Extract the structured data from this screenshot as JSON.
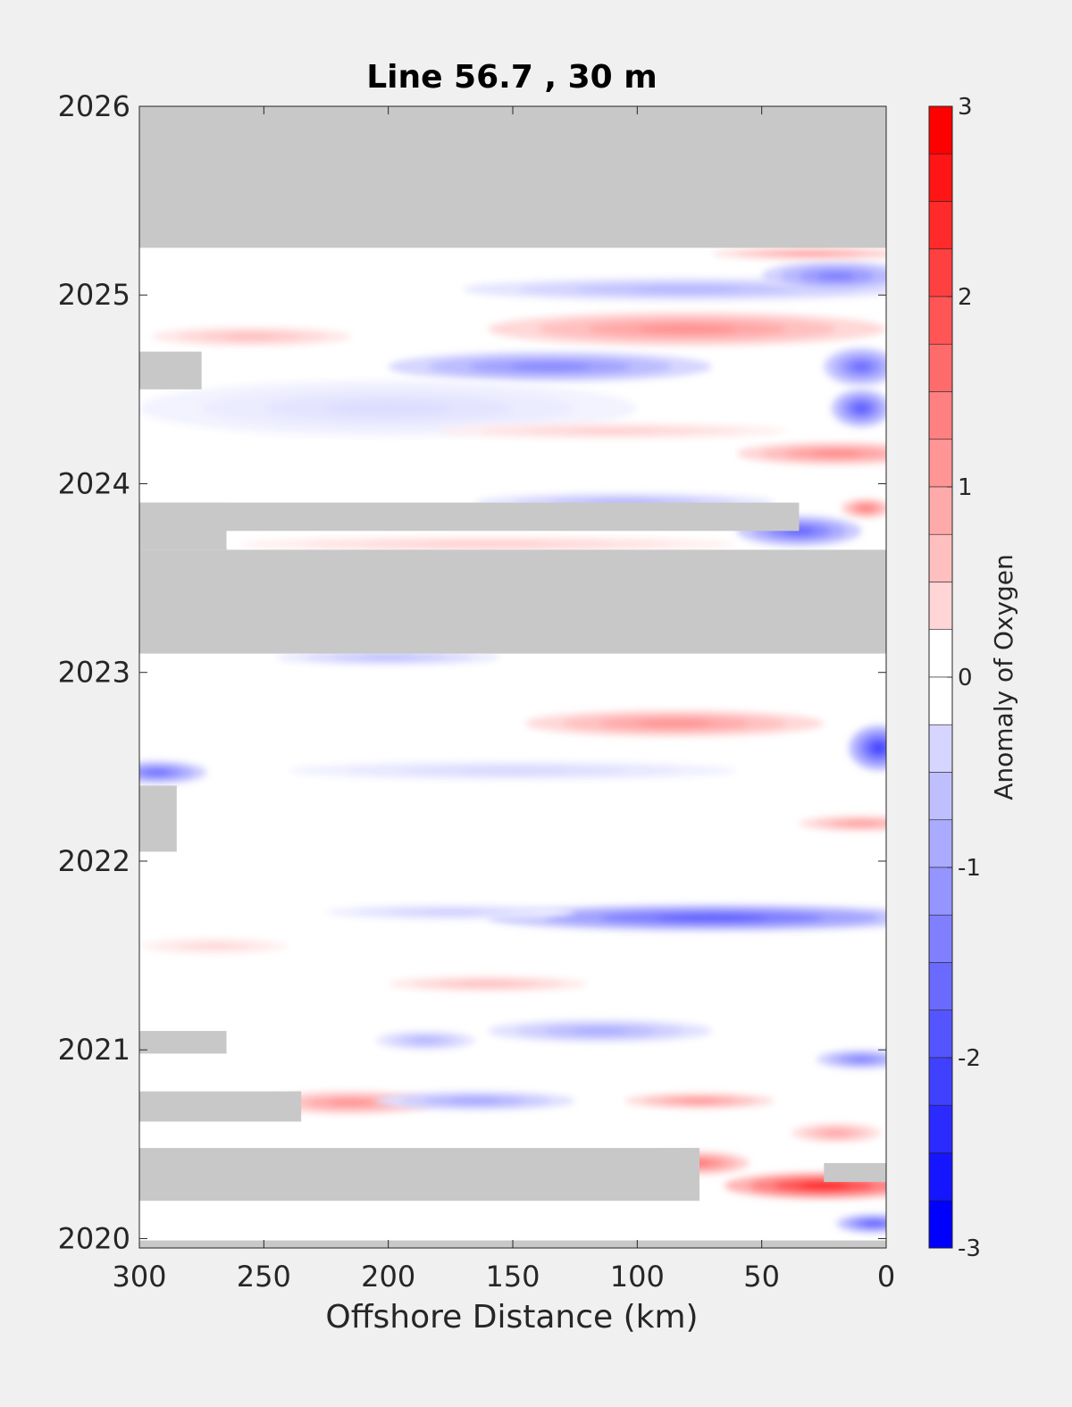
{
  "chart_data": {
    "type": "heatmap",
    "title": "Line 56.7 , 30 m",
    "xlabel": "Offshore Distance (km)",
    "ylabel": "",
    "xlim": [
      300,
      0
    ],
    "ylim": [
      2019.95,
      2026
    ],
    "xticks": [
      300,
      250,
      200,
      150,
      100,
      50,
      0
    ],
    "yticks": [
      2020,
      2021,
      2022,
      2023,
      2024,
      2025,
      2026
    ],
    "colorbar": {
      "label": "Anomaly of Oxygen",
      "range": [
        -3,
        3
      ],
      "ticks": [
        3,
        2,
        1,
        0,
        -1,
        -2,
        -3
      ],
      "levels": 24,
      "negative_color": "#0000ff",
      "positive_color": "#ff0000",
      "missing_color": "#c8c8c8"
    },
    "missing_regions": [
      {
        "x": [
          300,
          0
        ],
        "y": [
          2025.25,
          2026
        ]
      },
      {
        "x": [
          300,
          0
        ],
        "y": [
          2023.1,
          2023.65
        ]
      },
      {
        "x": [
          300,
          35
        ],
        "y": [
          2023.75,
          2023.9
        ]
      },
      {
        "x": [
          300,
          265
        ],
        "y": [
          2023.65,
          2023.9
        ]
      },
      {
        "x": [
          300,
          275
        ],
        "y": [
          2024.5,
          2024.7
        ]
      },
      {
        "x": [
          300,
          285
        ],
        "y": [
          2022.05,
          2022.4
        ]
      },
      {
        "x": [
          300,
          265
        ],
        "y": [
          2020.98,
          2021.1
        ]
      },
      {
        "x": [
          300,
          235
        ],
        "y": [
          2020.62,
          2020.78
        ]
      },
      {
        "x": [
          300,
          75
        ],
        "y": [
          2020.2,
          2020.48
        ]
      },
      {
        "x": [
          25,
          0
        ],
        "y": [
          2020.3,
          2020.4
        ]
      },
      {
        "x": [
          300,
          0
        ],
        "y": [
          2019.95,
          2019.99
        ]
      }
    ],
    "anomaly_features": [
      {
        "x": 80,
        "y": 2025.03,
        "rx": 90,
        "ry": 0.06,
        "value": -0.9
      },
      {
        "x": 20,
        "y": 2025.1,
        "rx": 30,
        "ry": 0.08,
        "value": -1.5
      },
      {
        "x": 30,
        "y": 2025.22,
        "rx": 40,
        "ry": 0.03,
        "value": 1.2
      },
      {
        "x": 80,
        "y": 2024.82,
        "rx": 80,
        "ry": 0.09,
        "value": 1.3
      },
      {
        "x": 255,
        "y": 2024.78,
        "rx": 40,
        "ry": 0.05,
        "value": 0.8
      },
      {
        "x": 135,
        "y": 2024.62,
        "rx": 65,
        "ry": 0.08,
        "value": -1.4
      },
      {
        "x": 10,
        "y": 2024.62,
        "rx": 15,
        "ry": 0.1,
        "value": -1.7
      },
      {
        "x": 10,
        "y": 2024.4,
        "rx": 12,
        "ry": 0.1,
        "value": -1.9
      },
      {
        "x": 200,
        "y": 2024.4,
        "rx": 100,
        "ry": 0.15,
        "value": -0.4
      },
      {
        "x": 20,
        "y": 2024.16,
        "rx": 40,
        "ry": 0.06,
        "value": 1.4
      },
      {
        "x": 110,
        "y": 2024.28,
        "rx": 70,
        "ry": 0.04,
        "value": 0.6
      },
      {
        "x": 35,
        "y": 2023.75,
        "rx": 25,
        "ry": 0.08,
        "value": -1.8
      },
      {
        "x": 105,
        "y": 2023.9,
        "rx": 60,
        "ry": 0.05,
        "value": -0.9
      },
      {
        "x": 8,
        "y": 2023.87,
        "rx": 10,
        "ry": 0.05,
        "value": 1.6
      },
      {
        "x": 160,
        "y": 2023.68,
        "rx": 100,
        "ry": 0.04,
        "value": 0.6
      },
      {
        "x": 200,
        "y": 2023.08,
        "rx": 45,
        "ry": 0.04,
        "value": -0.8
      },
      {
        "x": 85,
        "y": 2022.73,
        "rx": 60,
        "ry": 0.07,
        "value": 1.3
      },
      {
        "x": 3,
        "y": 2022.6,
        "rx": 12,
        "ry": 0.12,
        "value": -2.2
      },
      {
        "x": 293,
        "y": 2022.47,
        "rx": 20,
        "ry": 0.06,
        "value": -1.7
      },
      {
        "x": 150,
        "y": 2022.48,
        "rx": 90,
        "ry": 0.05,
        "value": -0.5
      },
      {
        "x": 10,
        "y": 2022.2,
        "rx": 25,
        "ry": 0.04,
        "value": 1.2
      },
      {
        "x": 70,
        "y": 2021.7,
        "rx": 90,
        "ry": 0.07,
        "value": -1.9
      },
      {
        "x": 175,
        "y": 2021.73,
        "rx": 50,
        "ry": 0.04,
        "value": -0.6
      },
      {
        "x": 160,
        "y": 2021.35,
        "rx": 40,
        "ry": 0.04,
        "value": 0.8
      },
      {
        "x": 270,
        "y": 2021.55,
        "rx": 30,
        "ry": 0.04,
        "value": 0.5
      },
      {
        "x": 115,
        "y": 2021.1,
        "rx": 45,
        "ry": 0.06,
        "value": -1.0
      },
      {
        "x": 185,
        "y": 2021.05,
        "rx": 20,
        "ry": 0.05,
        "value": -0.9
      },
      {
        "x": 10,
        "y": 2020.95,
        "rx": 18,
        "ry": 0.05,
        "value": -1.5
      },
      {
        "x": 215,
        "y": 2020.72,
        "rx": 35,
        "ry": 0.06,
        "value": 1.3
      },
      {
        "x": 165,
        "y": 2020.73,
        "rx": 40,
        "ry": 0.05,
        "value": -1.1
      },
      {
        "x": 75,
        "y": 2020.73,
        "rx": 30,
        "ry": 0.04,
        "value": 1.3
      },
      {
        "x": 75,
        "y": 2020.4,
        "rx": 20,
        "ry": 0.06,
        "value": 1.6
      },
      {
        "x": 25,
        "y": 2020.28,
        "rx": 40,
        "ry": 0.07,
        "value": 2.6
      },
      {
        "x": 5,
        "y": 2020.08,
        "rx": 15,
        "ry": 0.05,
        "value": -1.9
      },
      {
        "x": 20,
        "y": 2020.56,
        "rx": 18,
        "ry": 0.05,
        "value": 1.1
      }
    ]
  }
}
